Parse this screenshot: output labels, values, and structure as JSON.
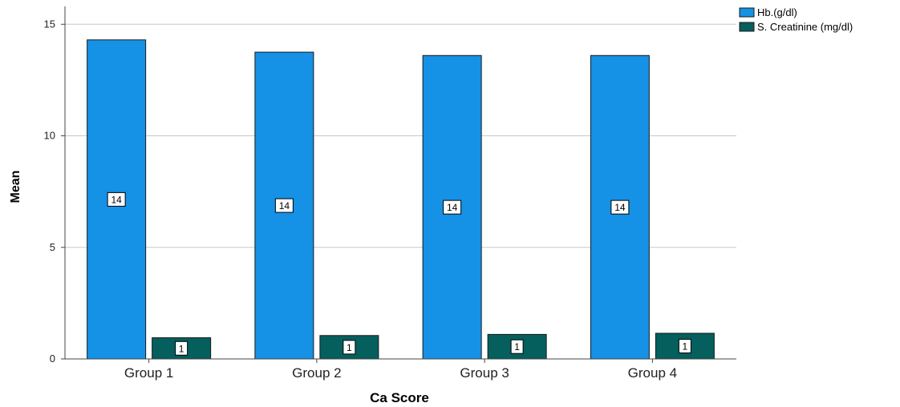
{
  "chart_data": {
    "type": "bar",
    "categories": [
      "Group 1",
      "Group 2",
      "Group 3",
      "Group 4"
    ],
    "series": [
      {
        "name": "Hb.(g/dl)",
        "values": [
          14.3,
          13.75,
          13.6,
          13.6
        ],
        "labels": [
          "14",
          "14",
          "14",
          "14"
        ]
      },
      {
        "name": "S. Creatinine (mg/dl)",
        "values": [
          0.95,
          1.05,
          1.1,
          1.15
        ],
        "labels": [
          "1",
          "1",
          "1",
          "1"
        ]
      }
    ],
    "xlabel": "Ca Score",
    "ylabel": "Mean",
    "ylim": [
      0,
      15.8
    ],
    "yticks": [
      0,
      5,
      10,
      15
    ],
    "grid": true,
    "legend_position": "top-right"
  },
  "colors": {
    "series": [
      "#1591e6",
      "#045f5d"
    ],
    "grid": "#c8c8c8",
    "axis": "#444444"
  }
}
